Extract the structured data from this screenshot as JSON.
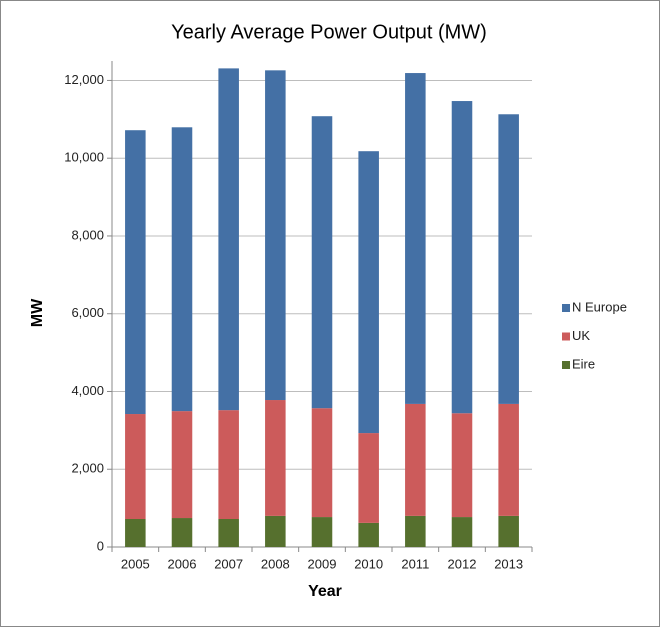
{
  "chart_data": {
    "type": "stacked-bar",
    "title": "Yearly Average Power Output (MW)",
    "x_label": "Year",
    "y_label": "MW",
    "categories": [
      "2005",
      "2006",
      "2007",
      "2008",
      "2009",
      "2010",
      "2011",
      "2012",
      "2013"
    ],
    "series": [
      {
        "name": "Eire",
        "color": "#56702e",
        "values": [
          720,
          745,
          720,
          800,
          770,
          620,
          800,
          770,
          800
        ]
      },
      {
        "name": "UK",
        "color": "#cc5b5b",
        "values": [
          2700,
          2750,
          2800,
          2980,
          2800,
          2310,
          2880,
          2670,
          2880
        ]
      },
      {
        "name": "N Europe",
        "color": "#4470a5",
        "values": [
          7300,
          7300,
          8790,
          8480,
          7510,
          7250,
          8510,
          8030,
          7450
        ]
      }
    ],
    "ylim": [
      0,
      12500
    ],
    "yticks": [
      0,
      {
        "value": 2000,
        "label": "2,000"
      },
      {
        "value": 4000,
        "label": "4,000"
      },
      {
        "value": 6000,
        "label": "6,000"
      },
      {
        "value": 8000,
        "label": "8,000"
      },
      {
        "value": 10000,
        "label": "10,000"
      },
      {
        "value": 12000,
        "label": "12,000"
      }
    ],
    "grid": true,
    "legend": "right"
  }
}
